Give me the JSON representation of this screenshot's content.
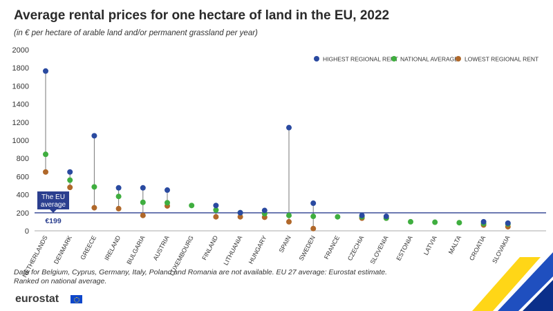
{
  "title": "Average rental prices for one hectare of land in the EU, 2022",
  "subtitle": "(in € per hectare of arable land and/or permanent grassland per year)",
  "footnotes": [
    "Data for Belgium, Cyprus, Germany, Italy, Poland and Romania are not available. EU 27 average: Eurostat estimate.",
    "Ranked on national average."
  ],
  "logo": "eurostat",
  "eu_average": {
    "label_line1": "The EU",
    "label_line2": "average",
    "value_label": "€199",
    "value": 199
  },
  "colors": {
    "highest": "#2a4aa0",
    "national": "#3fae3f",
    "lowest": "#b0682a",
    "eu_line": "#2b3f8f",
    "stem": "#777777",
    "axis": "#aaaaaa"
  },
  "chart_data": {
    "type": "scatter",
    "categories": [
      "NETHERLANDS",
      "DENMARK",
      "GREECE",
      "IRELAND",
      "BULGARIA",
      "AUSTRIA",
      "LUXEMBOURG",
      "FINLAND",
      "LITHUANIA",
      "HUNGARY",
      "SPAIN",
      "SWEDEN",
      "FRANCE",
      "CZECHIA",
      "SLOVENIA",
      "ESTONIA",
      "LATVIA",
      "MALTA",
      "CROATIA",
      "SLOVAKIA"
    ],
    "series": [
      {
        "name": "HIGHEST REGIONAL RENT",
        "values": [
          1765,
          650,
          1050,
          475,
          475,
          450,
          null,
          280,
          200,
          225,
          1140,
          305,
          null,
          170,
          160,
          null,
          null,
          null,
          100,
          85
        ]
      },
      {
        "name": "NATIONAL AVERAGE",
        "values": [
          845,
          560,
          485,
          380,
          315,
          310,
          280,
          230,
          200,
          190,
          170,
          160,
          155,
          155,
          140,
          100,
          95,
          90,
          80,
          75
        ]
      },
      {
        "name": "LOWEST REGIONAL RENT",
        "values": [
          650,
          480,
          255,
          245,
          170,
          275,
          null,
          155,
          155,
          150,
          100,
          25,
          null,
          140,
          140,
          null,
          null,
          null,
          65,
          45
        ]
      }
    ],
    "ylim": [
      0,
      2000
    ],
    "yticks": [
      0,
      200,
      400,
      600,
      800,
      1000,
      1200,
      1400,
      1600,
      1800,
      2000
    ],
    "reference_line": 199,
    "legend_position": "top-right"
  }
}
